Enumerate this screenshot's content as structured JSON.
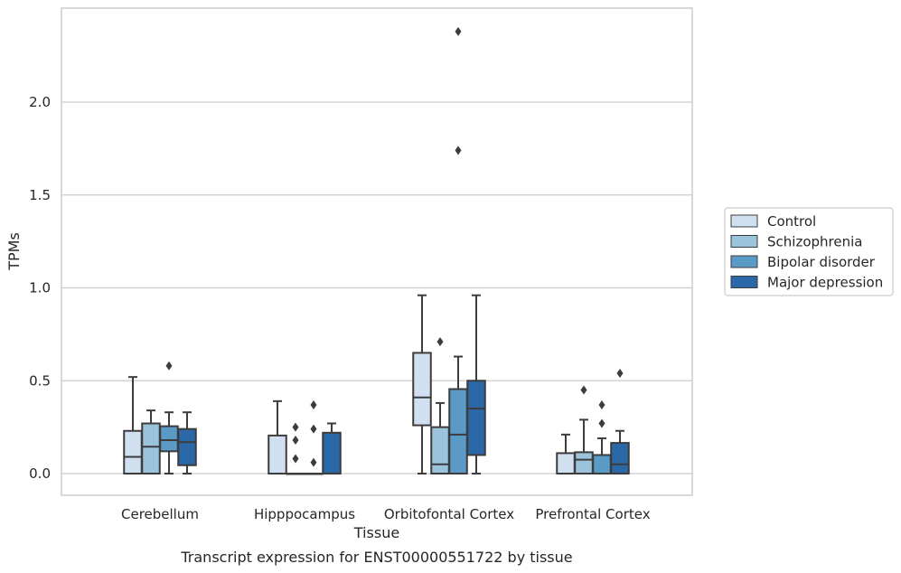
{
  "caption": "Transcript expression for ENST00000551722 by tissue",
  "colors": {
    "Control": "#d1e0f0",
    "Schizophrenia": "#9cc3dc",
    "Bipolar disorder": "#5a9ac6",
    "Major depression": "#2a68a8",
    "box_line": "#3c3c3c",
    "grid": "#cccccc",
    "frame": "#cccccc"
  },
  "chart_data": {
    "type": "boxplot",
    "title": "",
    "xlabel": "Tissue",
    "ylabel": "TPMs",
    "ylim": [
      -0.12,
      2.5
    ],
    "yticks": [
      0.0,
      0.5,
      1.0,
      1.5,
      2.0
    ],
    "ytick_labels": [
      "0.0",
      "0.5",
      "1.0",
      "1.5",
      "2.0"
    ],
    "grid": true,
    "legend_position": "right",
    "categories": [
      "Cerebellum",
      "Hipppocampus",
      "Orbitofontal Cortex",
      "Prefrontal Cortex"
    ],
    "series": [
      {
        "name": "Control",
        "boxes": [
          {
            "whisker_low": 0.0,
            "q1": 0.0,
            "median": 0.09,
            "q3": 0.23,
            "whisker_high": 0.52,
            "outliers": []
          },
          {
            "whisker_low": 0.0,
            "q1": 0.0,
            "median": 0.0,
            "q3": 0.205,
            "whisker_high": 0.39,
            "outliers": []
          },
          {
            "whisker_low": 0.0,
            "q1": 0.26,
            "median": 0.41,
            "q3": 0.65,
            "whisker_high": 0.96,
            "outliers": []
          },
          {
            "whisker_low": 0.0,
            "q1": 0.0,
            "median": 0.0,
            "q3": 0.11,
            "whisker_high": 0.21,
            "outliers": []
          }
        ]
      },
      {
        "name": "Schizophrenia",
        "boxes": [
          {
            "whisker_low": 0.0,
            "q1": 0.0,
            "median": 0.145,
            "q3": 0.27,
            "whisker_high": 0.34,
            "outliers": []
          },
          {
            "whisker_low": 0.0,
            "q1": 0.0,
            "median": 0.0,
            "q3": 0.0,
            "whisker_high": 0.0,
            "outliers": [
              0.08,
              0.18,
              0.25
            ]
          },
          {
            "whisker_low": 0.0,
            "q1": 0.0,
            "median": 0.05,
            "q3": 0.25,
            "whisker_high": 0.38,
            "outliers": [
              0.71
            ]
          },
          {
            "whisker_low": 0.0,
            "q1": 0.0,
            "median": 0.075,
            "q3": 0.115,
            "whisker_high": 0.29,
            "outliers": [
              0.45
            ]
          }
        ]
      },
      {
        "name": "Bipolar disorder",
        "boxes": [
          {
            "whisker_low": 0.0,
            "q1": 0.12,
            "median": 0.18,
            "q3": 0.255,
            "whisker_high": 0.33,
            "outliers": [
              0.58
            ]
          },
          {
            "whisker_low": 0.0,
            "q1": 0.0,
            "median": 0.0,
            "q3": 0.0,
            "whisker_high": 0.0,
            "outliers": [
              0.06,
              0.24,
              0.37
            ]
          },
          {
            "whisker_low": 0.0,
            "q1": 0.0,
            "median": 0.21,
            "q3": 0.455,
            "whisker_high": 0.63,
            "outliers": [
              1.74,
              2.38
            ]
          },
          {
            "whisker_low": 0.0,
            "q1": 0.0,
            "median": 0.0,
            "q3": 0.1,
            "whisker_high": 0.19,
            "outliers": [
              0.27,
              0.37
            ]
          }
        ]
      },
      {
        "name": "Major depression",
        "boxes": [
          {
            "whisker_low": 0.0,
            "q1": 0.045,
            "median": 0.17,
            "q3": 0.24,
            "whisker_high": 0.33,
            "outliers": []
          },
          {
            "whisker_low": 0.0,
            "q1": 0.0,
            "median": 0.0,
            "q3": 0.22,
            "whisker_high": 0.27,
            "outliers": []
          },
          {
            "whisker_low": 0.0,
            "q1": 0.1,
            "median": 0.35,
            "q3": 0.5,
            "whisker_high": 0.96,
            "outliers": []
          },
          {
            "whisker_low": 0.0,
            "q1": 0.0,
            "median": 0.05,
            "q3": 0.165,
            "whisker_high": 0.23,
            "outliers": [
              0.54
            ]
          }
        ]
      }
    ]
  }
}
